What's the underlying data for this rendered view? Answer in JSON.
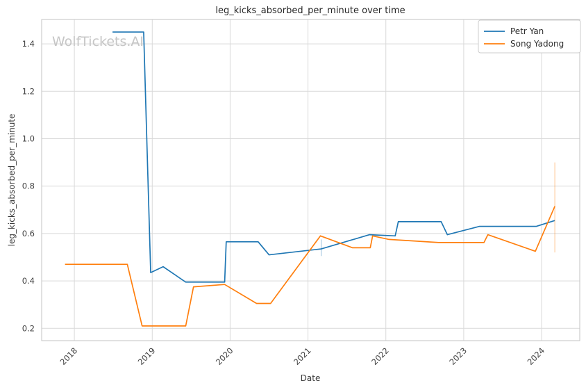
{
  "chart_data": {
    "type": "line",
    "title": "leg_kicks_absorbed_per_minute over time",
    "xlabel": "Date",
    "ylabel": "leg_kicks_absorbed_per_minute",
    "watermark": "WolfTickets.AI",
    "grid": true,
    "legend_position": "upper right",
    "x_ticks": [
      2018,
      2019,
      2020,
      2021,
      2022,
      2023,
      2024
    ],
    "y_ticks": [
      0.2,
      0.4,
      0.6,
      0.8,
      1.0,
      1.2,
      1.4
    ],
    "xlim": [
      2017.58,
      2024.49
    ],
    "ylim": [
      0.148,
      1.503
    ],
    "series": [
      {
        "name": "Petr Yan",
        "color": "#1f77b4",
        "points": [
          [
            2018.49,
            1.45
          ],
          [
            2018.89,
            1.45
          ],
          [
            2018.98,
            0.435
          ],
          [
            2019.14,
            0.46
          ],
          [
            2019.43,
            0.395
          ],
          [
            2019.93,
            0.395
          ],
          [
            2019.95,
            0.565
          ],
          [
            2020.36,
            0.565
          ],
          [
            2020.5,
            0.51
          ],
          [
            2021.17,
            0.535
          ],
          [
            2021.79,
            0.595
          ],
          [
            2022.12,
            0.59
          ],
          [
            2022.16,
            0.65
          ],
          [
            2022.71,
            0.65
          ],
          [
            2022.79,
            0.595
          ],
          [
            2023.2,
            0.63
          ],
          [
            2023.93,
            0.63
          ],
          [
            2024.17,
            0.655
          ]
        ],
        "error_bars": [
          {
            "x": 2021.17,
            "low": 0.505,
            "high": 0.575
          }
        ]
      },
      {
        "name": "Song Yadong",
        "color": "#ff7f0e",
        "points": [
          [
            2017.88,
            0.47
          ],
          [
            2018.68,
            0.47
          ],
          [
            2018.87,
            0.21
          ],
          [
            2019.43,
            0.21
          ],
          [
            2019.53,
            0.375
          ],
          [
            2019.93,
            0.385
          ],
          [
            2020.34,
            0.305
          ],
          [
            2020.52,
            0.305
          ],
          [
            2021.16,
            0.59
          ],
          [
            2021.57,
            0.54
          ],
          [
            2021.8,
            0.54
          ],
          [
            2021.83,
            0.59
          ],
          [
            2022.04,
            0.575
          ],
          [
            2022.68,
            0.562
          ],
          [
            2023.26,
            0.562
          ],
          [
            2023.31,
            0.595
          ],
          [
            2023.92,
            0.525
          ],
          [
            2024.17,
            0.715
          ]
        ],
        "error_bars": [
          {
            "x": 2024.17,
            "low": 0.52,
            "high": 0.9
          }
        ]
      }
    ]
  }
}
